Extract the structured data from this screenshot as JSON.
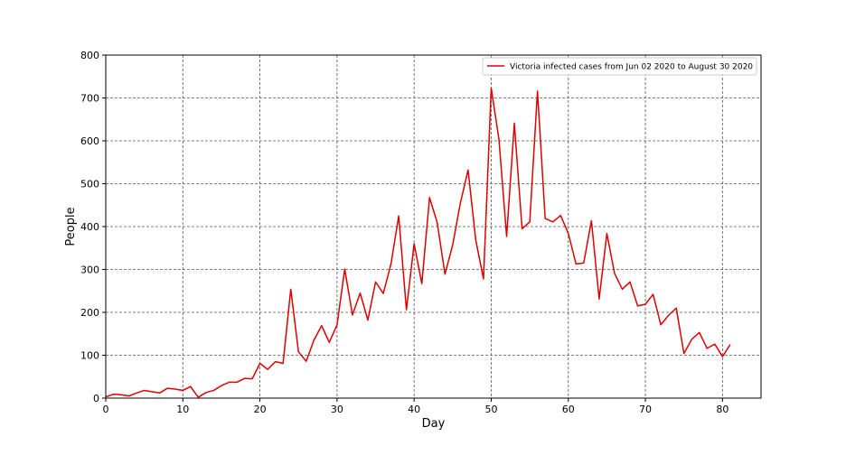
{
  "chart_data": {
    "type": "line",
    "title": "",
    "xlabel": "Day",
    "ylabel": "People",
    "xlim": [
      0,
      85
    ],
    "ylim": [
      0,
      800
    ],
    "xticks": [
      0,
      10,
      20,
      30,
      40,
      50,
      60,
      70,
      80
    ],
    "yticks": [
      0,
      100,
      200,
      300,
      400,
      500,
      600,
      700,
      800
    ],
    "grid": true,
    "legend_position": "top-right",
    "series": [
      {
        "name": "Victoria infected cases from Jun 02 2020 to August 30 2020",
        "color": "#dd0000",
        "x": [
          0,
          1,
          2,
          3,
          4,
          5,
          6,
          7,
          8,
          9,
          10,
          11,
          12,
          13,
          14,
          15,
          16,
          17,
          18,
          19,
          20,
          21,
          22,
          23,
          24,
          25,
          26,
          27,
          28,
          29,
          30,
          31,
          32,
          33,
          34,
          35,
          36,
          37,
          38,
          39,
          40,
          41,
          42,
          43,
          44,
          45,
          46,
          47,
          48,
          49,
          50,
          51,
          52,
          53,
          54,
          55,
          56,
          57,
          58,
          59,
          60,
          61,
          62,
          63,
          64,
          65,
          66,
          67,
          68,
          69,
          70,
          71,
          72,
          73,
          74,
          75,
          76,
          77,
          78,
          79,
          80,
          81
        ],
        "y": [
          3,
          9,
          8,
          5,
          12,
          18,
          15,
          12,
          23,
          21,
          18,
          27,
          2,
          13,
          18,
          29,
          37,
          37,
          46,
          45,
          81,
          67,
          85,
          81,
          254,
          108,
          86,
          135,
          169,
          130,
          171,
          301,
          194,
          245,
          182,
          271,
          244,
          313,
          425,
          206,
          360,
          267,
          468,
          409,
          289,
          357,
          455,
          532,
          368,
          278,
          723,
          604,
          377,
          641,
          395,
          411,
          716,
          419,
          411,
          426,
          384,
          313,
          315,
          414,
          231,
          384,
          291,
          254,
          271,
          215,
          219,
          242,
          171,
          193,
          210,
          104,
          137,
          153,
          116,
          126,
          97,
          125
        ]
      }
    ]
  }
}
